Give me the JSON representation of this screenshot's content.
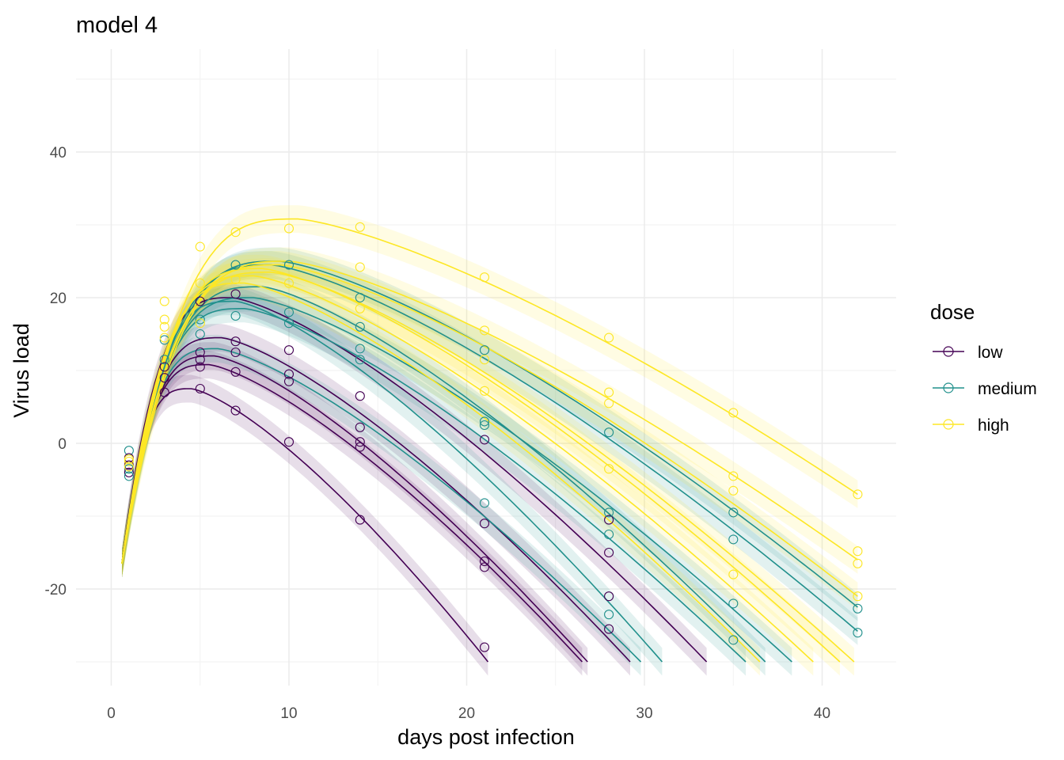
{
  "chart_data": {
    "type": "line",
    "title": "model 4",
    "xlabel": "days post infection",
    "ylabel": "Virus load",
    "xlim": [
      -1,
      44
    ],
    "ylim": [
      -33,
      50
    ],
    "x_ticks": [
      0,
      10,
      20,
      30,
      40
    ],
    "x_tick_labels": [
      "0",
      "10",
      "20",
      "30",
      "40"
    ],
    "y_ticks": [
      -20,
      0,
      20,
      40
    ],
    "y_tick_labels": [
      "-20",
      "0",
      "20",
      "40"
    ],
    "grid": true,
    "legend": {
      "title": "dose",
      "position": "right",
      "entries": [
        {
          "label": "low",
          "color": "#440154"
        },
        {
          "label": "medium",
          "color": "#21908c"
        },
        {
          "label": "high",
          "color": "#fde725"
        }
      ]
    },
    "floor": -30,
    "series": [
      {
        "dose": "low",
        "color": "#440154",
        "peak_x": 4.5,
        "peak_y": 7.5,
        "end_x": 21.2
      },
      {
        "dose": "low",
        "color": "#440154",
        "peak_x": 5.5,
        "peak_y": 10.8,
        "end_x": 26.5
      },
      {
        "dose": "low",
        "color": "#440154",
        "peak_x": 5.8,
        "peak_y": 12.0,
        "end_x": 26.8
      },
      {
        "dose": "low",
        "color": "#440154",
        "peak_x": 6.2,
        "peak_y": 14.5,
        "end_x": 29.2
      },
      {
        "dose": "low",
        "color": "#440154",
        "peak_x": 6.8,
        "peak_y": 20.0,
        "end_x": 33.5
      },
      {
        "dose": "medium",
        "color": "#21908c",
        "peak_x": 6.0,
        "peak_y": 13.0,
        "end_x": 29.8
      },
      {
        "dose": "medium",
        "color": "#21908c",
        "peak_x": 7.0,
        "peak_y": 19.5,
        "end_x": 31.0
      },
      {
        "dose": "medium",
        "color": "#21908c",
        "peak_x": 7.5,
        "peak_y": 18.5,
        "end_x": 35.7
      },
      {
        "dose": "medium",
        "color": "#21908c",
        "peak_x": 8.0,
        "peak_y": 20.0,
        "end_x": 38.3
      },
      {
        "dose": "medium",
        "color": "#21908c",
        "peak_x": 8.5,
        "peak_y": 21.5,
        "end_x": 36.8
      },
      {
        "dose": "medium",
        "color": "#21908c",
        "peak_x": 9.0,
        "peak_y": 24.5,
        "end_x": 42.0,
        "end_y": -25.8
      },
      {
        "dose": "medium",
        "color": "#21908c",
        "peak_x": 9.5,
        "peak_y": 25.0,
        "end_x": 42.0,
        "end_y": -22.5
      },
      {
        "dose": "high",
        "color": "#fde725",
        "peak_x": 7.5,
        "peak_y": 22.0,
        "end_x": 36.5
      },
      {
        "dose": "high",
        "color": "#fde725",
        "peak_x": 8.0,
        "peak_y": 23.0,
        "end_x": 39.5
      },
      {
        "dose": "high",
        "color": "#fde725",
        "peak_x": 8.5,
        "peak_y": 24.0,
        "end_x": 41.0
      },
      {
        "dose": "high",
        "color": "#fde725",
        "peak_x": 9.0,
        "peak_y": 23.5,
        "end_x": 41.8
      },
      {
        "dose": "high",
        "color": "#fde725",
        "peak_x": 9.5,
        "peak_y": 24.5,
        "end_x": 42.0,
        "end_y": -21.0
      },
      {
        "dose": "high",
        "color": "#fde725",
        "peak_x": 10.0,
        "peak_y": 25.0,
        "end_x": 42.0,
        "end_y": -16.0
      },
      {
        "dose": "high",
        "color": "#fde725",
        "peak_x": 10.5,
        "peak_y": 30.8,
        "end_x": 42.0,
        "end_y": -7.0
      }
    ],
    "points": [
      {
        "x": 1,
        "y": -1.0,
        "dose": "medium"
      },
      {
        "x": 1,
        "y": -2.0,
        "dose": "low"
      },
      {
        "x": 1,
        "y": -2.5,
        "dose": "high"
      },
      {
        "x": 1,
        "y": -3.0,
        "dose": "low"
      },
      {
        "x": 1,
        "y": -3.5,
        "dose": "medium"
      },
      {
        "x": 1,
        "y": -4.0,
        "dose": "low"
      },
      {
        "x": 1,
        "y": -4.5,
        "dose": "medium"
      },
      {
        "x": 1,
        "y": -2.2,
        "dose": "high"
      },
      {
        "x": 1,
        "y": -3.2,
        "dose": "high"
      },
      {
        "x": 3,
        "y": 7.0,
        "dose": "low"
      },
      {
        "x": 3,
        "y": 9.0,
        "dose": "low"
      },
      {
        "x": 3,
        "y": 10.5,
        "dose": "low"
      },
      {
        "x": 3,
        "y": 11.5,
        "dose": "medium"
      },
      {
        "x": 3,
        "y": 14.2,
        "dose": "medium"
      },
      {
        "x": 3,
        "y": 16.0,
        "dose": "high"
      },
      {
        "x": 3,
        "y": 17.0,
        "dose": "high"
      },
      {
        "x": 3,
        "y": 19.5,
        "dose": "high"
      },
      {
        "x": 3,
        "y": 14.5,
        "dose": "high"
      },
      {
        "x": 5,
        "y": 7.5,
        "dose": "low"
      },
      {
        "x": 5,
        "y": 10.5,
        "dose": "low"
      },
      {
        "x": 5,
        "y": 11.5,
        "dose": "low"
      },
      {
        "x": 5,
        "y": 12.5,
        "dose": "low"
      },
      {
        "x": 5,
        "y": 15.0,
        "dose": "medium"
      },
      {
        "x": 5,
        "y": 17.0,
        "dose": "medium"
      },
      {
        "x": 5,
        "y": 19.5,
        "dose": "low"
      },
      {
        "x": 5,
        "y": 22.0,
        "dose": "high"
      },
      {
        "x": 5,
        "y": 27.0,
        "dose": "high"
      },
      {
        "x": 5,
        "y": 16.5,
        "dose": "high"
      },
      {
        "x": 7,
        "y": 4.5,
        "dose": "low"
      },
      {
        "x": 7,
        "y": 9.8,
        "dose": "low"
      },
      {
        "x": 7,
        "y": 12.5,
        "dose": "low"
      },
      {
        "x": 7,
        "y": 14.0,
        "dose": "low"
      },
      {
        "x": 7,
        "y": 17.5,
        "dose": "medium"
      },
      {
        "x": 7,
        "y": 20.5,
        "dose": "low"
      },
      {
        "x": 7,
        "y": 22.5,
        "dose": "high"
      },
      {
        "x": 7,
        "y": 24.5,
        "dose": "medium"
      },
      {
        "x": 7,
        "y": 29.0,
        "dose": "high"
      },
      {
        "x": 10,
        "y": 0.2,
        "dose": "low"
      },
      {
        "x": 10,
        "y": 8.5,
        "dose": "low"
      },
      {
        "x": 10,
        "y": 9.5,
        "dose": "low"
      },
      {
        "x": 10,
        "y": 12.8,
        "dose": "low"
      },
      {
        "x": 10,
        "y": 16.5,
        "dose": "medium"
      },
      {
        "x": 10,
        "y": 18.0,
        "dose": "medium"
      },
      {
        "x": 10,
        "y": 24.5,
        "dose": "medium"
      },
      {
        "x": 10,
        "y": 29.5,
        "dose": "high"
      },
      {
        "x": 10,
        "y": 22.0,
        "dose": "high"
      },
      {
        "x": 14,
        "y": -10.5,
        "dose": "low"
      },
      {
        "x": 14,
        "y": -0.5,
        "dose": "low"
      },
      {
        "x": 14,
        "y": 0.2,
        "dose": "low"
      },
      {
        "x": 14,
        "y": 2.2,
        "dose": "low"
      },
      {
        "x": 14,
        "y": 6.5,
        "dose": "low"
      },
      {
        "x": 14,
        "y": 11.5,
        "dose": "medium"
      },
      {
        "x": 14,
        "y": 13.0,
        "dose": "medium"
      },
      {
        "x": 14,
        "y": 16.0,
        "dose": "medium"
      },
      {
        "x": 14,
        "y": 18.5,
        "dose": "high"
      },
      {
        "x": 14,
        "y": 20.0,
        "dose": "medium"
      },
      {
        "x": 14,
        "y": 24.2,
        "dose": "high"
      },
      {
        "x": 14,
        "y": 29.7,
        "dose": "high"
      },
      {
        "x": 21,
        "y": -28.0,
        "dose": "low"
      },
      {
        "x": 21,
        "y": -17.0,
        "dose": "low"
      },
      {
        "x": 21,
        "y": -16.2,
        "dose": "low"
      },
      {
        "x": 21,
        "y": -11.0,
        "dose": "low"
      },
      {
        "x": 21,
        "y": -8.2,
        "dose": "medium"
      },
      {
        "x": 21,
        "y": 0.5,
        "dose": "low"
      },
      {
        "x": 21,
        "y": 2.5,
        "dose": "medium"
      },
      {
        "x": 21,
        "y": 3.0,
        "dose": "medium"
      },
      {
        "x": 21,
        "y": 7.2,
        "dose": "high"
      },
      {
        "x": 21,
        "y": 11.5,
        "dose": "high"
      },
      {
        "x": 21,
        "y": 12.8,
        "dose": "medium"
      },
      {
        "x": 21,
        "y": 15.5,
        "dose": "high"
      },
      {
        "x": 21,
        "y": 22.8,
        "dose": "high"
      },
      {
        "x": 28,
        "y": -25.5,
        "dose": "low"
      },
      {
        "x": 28,
        "y": -23.5,
        "dose": "medium"
      },
      {
        "x": 28,
        "y": -21.0,
        "dose": "low"
      },
      {
        "x": 28,
        "y": -15.0,
        "dose": "low"
      },
      {
        "x": 28,
        "y": -12.5,
        "dose": "medium"
      },
      {
        "x": 28,
        "y": -10.5,
        "dose": "low"
      },
      {
        "x": 28,
        "y": -9.5,
        "dose": "medium"
      },
      {
        "x": 28,
        "y": -3.5,
        "dose": "high"
      },
      {
        "x": 28,
        "y": 1.5,
        "dose": "medium"
      },
      {
        "x": 28,
        "y": 5.5,
        "dose": "high"
      },
      {
        "x": 28,
        "y": 7.0,
        "dose": "high"
      },
      {
        "x": 28,
        "y": 14.5,
        "dose": "high"
      },
      {
        "x": 35,
        "y": -27.0,
        "dose": "medium"
      },
      {
        "x": 35,
        "y": -22.0,
        "dose": "medium"
      },
      {
        "x": 35,
        "y": -18.0,
        "dose": "high"
      },
      {
        "x": 35,
        "y": -13.2,
        "dose": "medium"
      },
      {
        "x": 35,
        "y": -9.5,
        "dose": "medium"
      },
      {
        "x": 35,
        "y": -6.5,
        "dose": "high"
      },
      {
        "x": 35,
        "y": -4.5,
        "dose": "high"
      },
      {
        "x": 35,
        "y": 4.2,
        "dose": "high"
      },
      {
        "x": 42,
        "y": -26.0,
        "dose": "medium"
      },
      {
        "x": 42,
        "y": -22.7,
        "dose": "medium"
      },
      {
        "x": 42,
        "y": -21.0,
        "dose": "high"
      },
      {
        "x": 42,
        "y": -16.5,
        "dose": "high"
      },
      {
        "x": 42,
        "y": -14.8,
        "dose": "high"
      },
      {
        "x": 42,
        "y": -7.0,
        "dose": "high"
      }
    ]
  }
}
